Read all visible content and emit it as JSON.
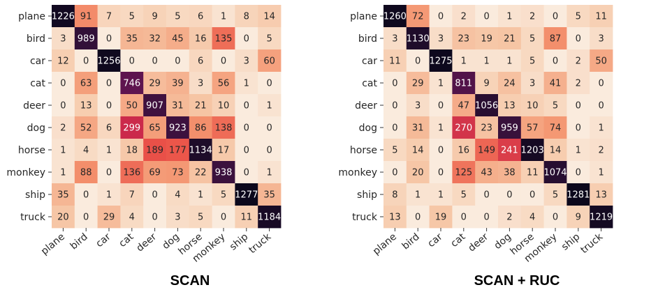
{
  "chart_data": [
    {
      "type": "heatmap",
      "title": "SCAN",
      "xlabel": "",
      "ylabel": "",
      "x_categories": [
        "plane",
        "bird",
        "car",
        "cat",
        "deer",
        "dog",
        "horse",
        "monkey",
        "ship",
        "truck"
      ],
      "y_categories": [
        "plane",
        "bird",
        "car",
        "cat",
        "deer",
        "dog",
        "horse",
        "monkey",
        "ship",
        "truck"
      ],
      "values": [
        [
          1226,
          91,
          7,
          5,
          9,
          5,
          6,
          1,
          8,
          14
        ],
        [
          3,
          989,
          0,
          35,
          32,
          45,
          16,
          135,
          0,
          5
        ],
        [
          12,
          0,
          1256,
          0,
          0,
          0,
          6,
          0,
          3,
          60
        ],
        [
          0,
          63,
          0,
          746,
          29,
          39,
          3,
          56,
          1,
          0
        ],
        [
          0,
          13,
          0,
          50,
          907,
          31,
          21,
          10,
          0,
          1
        ],
        [
          2,
          52,
          6,
          299,
          65,
          923,
          86,
          138,
          0,
          0
        ],
        [
          1,
          4,
          1,
          18,
          189,
          177,
          1134,
          17,
          0,
          0
        ],
        [
          1,
          88,
          0,
          136,
          69,
          73,
          22,
          938,
          0,
          1
        ],
        [
          35,
          0,
          1,
          7,
          0,
          4,
          1,
          5,
          1277,
          35
        ],
        [
          20,
          0,
          29,
          4,
          0,
          3,
          5,
          0,
          11,
          1184
        ]
      ],
      "colorbar": false,
      "grid": false
    },
    {
      "type": "heatmap",
      "title": "SCAN + RUC",
      "xlabel": "",
      "ylabel": "",
      "x_categories": [
        "plane",
        "bird",
        "car",
        "cat",
        "deer",
        "dog",
        "horse",
        "monkey",
        "ship",
        "truck"
      ],
      "y_categories": [
        "plane",
        "bird",
        "car",
        "cat",
        "deer",
        "dog",
        "horse",
        "monkey",
        "ship",
        "truck"
      ],
      "values": [
        [
          1260,
          72,
          0,
          2,
          0,
          1,
          2,
          0,
          5,
          11
        ],
        [
          3,
          1130,
          3,
          23,
          19,
          21,
          5,
          87,
          0,
          3
        ],
        [
          11,
          0,
          1275,
          1,
          1,
          1,
          5,
          0,
          2,
          50
        ],
        [
          0,
          29,
          1,
          811,
          9,
          24,
          3,
          41,
          2,
          0
        ],
        [
          0,
          3,
          0,
          47,
          1056,
          13,
          10,
          5,
          0,
          0
        ],
        [
          0,
          31,
          1,
          270,
          23,
          959,
          57,
          74,
          0,
          1
        ],
        [
          5,
          14,
          0,
          16,
          149,
          241,
          1203,
          14,
          1,
          2
        ],
        [
          0,
          20,
          0,
          125,
          43,
          38,
          11,
          1074,
          0,
          1
        ],
        [
          8,
          1,
          1,
          5,
          0,
          0,
          0,
          5,
          1281,
          13
        ],
        [
          13,
          0,
          19,
          0,
          0,
          2,
          4,
          0,
          9,
          1219
        ]
      ],
      "colorbar": false,
      "grid": false
    }
  ]
}
